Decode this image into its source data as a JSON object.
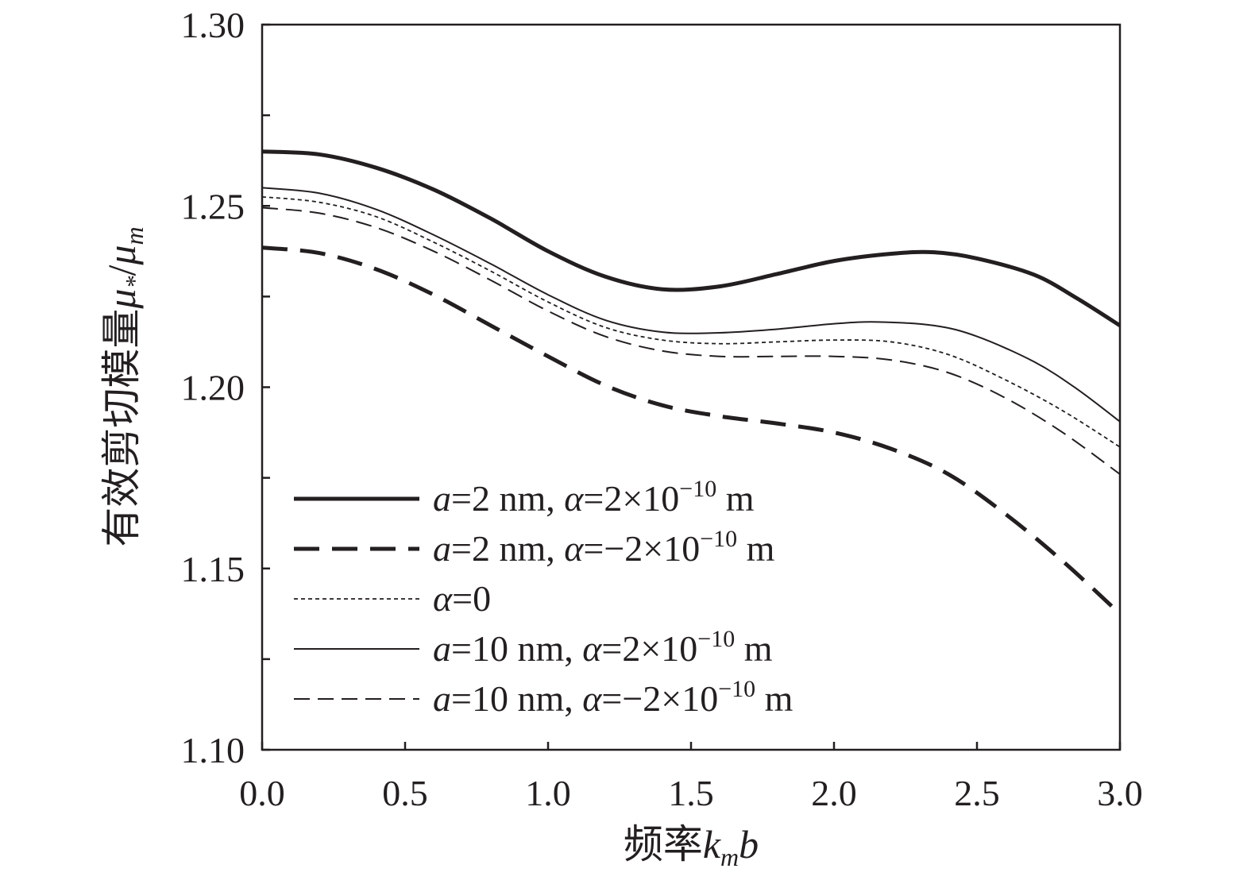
{
  "chart_data": {
    "type": "line",
    "xlabel": {
      "prefix": "频率",
      "var": "k",
      "sub": "m",
      "suffix": "b"
    },
    "ylabel": {
      "prefix": "有效剪切模量",
      "var1": "μ",
      "sub1": "*",
      "slash": "/",
      "var2": "μ",
      "sub2": "m"
    },
    "xlim": [
      0,
      3.0
    ],
    "ylim": [
      1.1,
      1.3
    ],
    "xticks": [
      0.0,
      0.5,
      1.0,
      1.5,
      2.0,
      2.5,
      3.0
    ],
    "xtick_labels": [
      "0.0",
      "0.5",
      "1.0",
      "1.5",
      "2.0",
      "2.5",
      "3.0"
    ],
    "yticks": [
      1.1,
      1.15,
      1.2,
      1.25,
      1.3
    ],
    "ytick_labels": [
      "1.10",
      "1.15",
      "1.20",
      "1.25",
      "1.30"
    ],
    "y_minor_step": 0.025,
    "legend_position": "bottom-left",
    "series": [
      {
        "name": "a=2 nm, α=2×10⁻¹⁰ m",
        "style": "thick-solid",
        "legend": {
          "v1": "a",
          "t1": "=2 nm, ",
          "v2": "α",
          "t2": "=2×10",
          "exp": "−10",
          "t3": " m"
        },
        "x": [
          0,
          0.2,
          0.4,
          0.6,
          0.8,
          1.0,
          1.2,
          1.4,
          1.6,
          1.8,
          2.0,
          2.2,
          2.35,
          2.5,
          2.7,
          2.85,
          3.0
        ],
        "y": [
          1.265,
          1.2642,
          1.2605,
          1.2545,
          1.2465,
          1.2375,
          1.2305,
          1.227,
          1.2278,
          1.2312,
          1.2348,
          1.2368,
          1.2372,
          1.2355,
          1.231,
          1.2245,
          1.217
        ]
      },
      {
        "name": "a=2 nm, α=−2×10⁻¹⁰ m",
        "style": "thick-dash",
        "legend": {
          "v1": "a",
          "t1": "=2 nm, ",
          "v2": "α",
          "t2": "=−2×10",
          "exp": "−10",
          "t3": " m"
        },
        "x": [
          0,
          0.2,
          0.4,
          0.6,
          0.8,
          1.0,
          1.2,
          1.4,
          1.6,
          1.8,
          2.0,
          2.2,
          2.4,
          2.6,
          2.8,
          3.0
        ],
        "y": [
          1.2385,
          1.237,
          1.2325,
          1.2255,
          1.217,
          1.2085,
          1.2005,
          1.195,
          1.192,
          1.19,
          1.1875,
          1.183,
          1.176,
          1.165,
          1.152,
          1.1375
        ]
      },
      {
        "name": "α=0",
        "style": "dotted",
        "legend": {
          "v1": "",
          "t1": "",
          "v2": "α",
          "t2": "=0",
          "exp": "",
          "t3": ""
        },
        "x": [
          0,
          0.2,
          0.4,
          0.6,
          0.8,
          1.0,
          1.2,
          1.4,
          1.6,
          1.8,
          2.0,
          2.2,
          2.4,
          2.6,
          2.8,
          3.0
        ],
        "y": [
          1.2525,
          1.251,
          1.247,
          1.24,
          1.232,
          1.2235,
          1.2165,
          1.213,
          1.212,
          1.2125,
          1.213,
          1.2125,
          1.209,
          1.202,
          1.1935,
          1.1835
        ]
      },
      {
        "name": "a=10 nm, α=2×10⁻¹⁰ m",
        "style": "thin-solid",
        "legend": {
          "v1": "a",
          "t1": "=10 nm, ",
          "v2": "α",
          "t2": "=2×10",
          "exp": "−10",
          "t3": " m"
        },
        "x": [
          0,
          0.2,
          0.4,
          0.6,
          0.8,
          1.0,
          1.2,
          1.4,
          1.6,
          1.8,
          2.0,
          2.15,
          2.35,
          2.5,
          2.7,
          2.85,
          3.0
        ],
        "y": [
          1.255,
          1.2535,
          1.249,
          1.242,
          1.234,
          1.2255,
          1.2185,
          1.2152,
          1.215,
          1.216,
          1.2175,
          1.218,
          1.217,
          1.214,
          1.207,
          1.1995,
          1.1905
        ]
      },
      {
        "name": "a=10 nm, α=−2×10⁻¹⁰ m",
        "style": "thin-dash",
        "legend": {
          "v1": "a",
          "t1": "=10 nm, ",
          "v2": "α",
          "t2": "=−2×10",
          "exp": "−10",
          "t3": " m"
        },
        "x": [
          0,
          0.2,
          0.4,
          0.6,
          0.8,
          1.0,
          1.2,
          1.4,
          1.6,
          1.8,
          2.0,
          2.2,
          2.4,
          2.6,
          2.8,
          3.0
        ],
        "y": [
          1.2495,
          1.248,
          1.244,
          1.2375,
          1.2295,
          1.221,
          1.214,
          1.21,
          1.2085,
          1.2085,
          1.2085,
          1.2075,
          1.204,
          1.197,
          1.1875,
          1.176
        ]
      }
    ]
  }
}
